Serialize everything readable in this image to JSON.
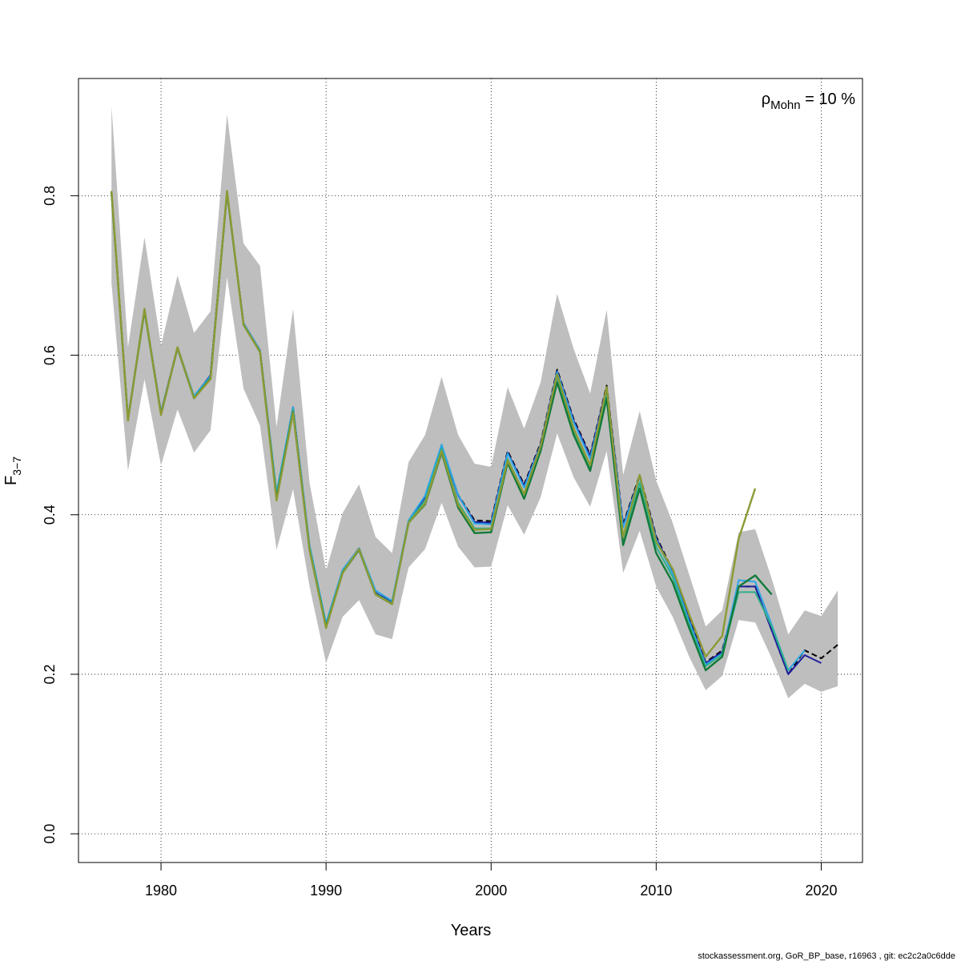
{
  "chart_data": {
    "type": "line",
    "title": "",
    "xlabel": "Years",
    "ylabel": "F",
    "ylabel_sub": "3−7",
    "xlim": [
      1975,
      2022.5
    ],
    "ylim": [
      -0.036,
      0.947
    ],
    "xticks": [
      1980,
      1990,
      2000,
      2010,
      2020
    ],
    "xtick_labels": [
      "1980",
      "1990",
      "2000",
      "2010",
      "2020"
    ],
    "yticks": [
      0.0,
      0.2,
      0.4,
      0.6,
      0.8
    ],
    "ytick_labels": [
      "0.0",
      "0.2",
      "0.4",
      "0.6",
      "0.8"
    ],
    "grid": true,
    "annotation": {
      "rho": "ρ",
      "sub": "Mohn",
      "text": " = 10 %",
      "placement": "top-right"
    },
    "band": {
      "color": "#bebebe",
      "x": [
        1977,
        1978,
        1979,
        1980,
        1981,
        1982,
        1983,
        1984,
        1985,
        1986,
        1987,
        1988,
        1989,
        1990,
        1991,
        1992,
        1993,
        1994,
        1995,
        1996,
        1997,
        1998,
        1999,
        2000,
        2001,
        2002,
        2003,
        2004,
        2005,
        2006,
        2007,
        2008,
        2009,
        2010,
        2011,
        2012,
        2013,
        2014,
        2015,
        2016,
        2017,
        2018,
        2019,
        2020,
        2021
      ],
      "upper": [
        0.912,
        0.61,
        0.748,
        0.612,
        0.7,
        0.628,
        0.655,
        0.902,
        0.74,
        0.712,
        0.51,
        0.658,
        0.44,
        0.33,
        0.402,
        0.438,
        0.372,
        0.352,
        0.466,
        0.5,
        0.573,
        0.5,
        0.464,
        0.46,
        0.56,
        0.508,
        0.566,
        0.677,
        0.608,
        0.552,
        0.657,
        0.45,
        0.53,
        0.443,
        0.39,
        0.325,
        0.26,
        0.28,
        0.378,
        0.382,
        0.32,
        0.25,
        0.28,
        0.273,
        0.305
      ],
      "lower": [
        0.69,
        0.455,
        0.57,
        0.462,
        0.532,
        0.478,
        0.506,
        0.698,
        0.558,
        0.512,
        0.356,
        0.432,
        0.31,
        0.214,
        0.272,
        0.293,
        0.25,
        0.244,
        0.334,
        0.357,
        0.415,
        0.36,
        0.334,
        0.335,
        0.412,
        0.375,
        0.422,
        0.502,
        0.447,
        0.41,
        0.48,
        0.327,
        0.38,
        0.31,
        0.272,
        0.222,
        0.18,
        0.198,
        0.268,
        0.265,
        0.22,
        0.17,
        0.188,
        0.178,
        0.185
      ]
    },
    "series": [
      {
        "color": "#000000",
        "dashed": true,
        "width": 2,
        "x": [
          1977,
          1978,
          1979,
          1980,
          1981,
          1982,
          1983,
          1984,
          1985,
          1986,
          1987,
          1988,
          1989,
          1990,
          1991,
          1992,
          1993,
          1994,
          1995,
          1996,
          1997,
          1998,
          1999,
          2000,
          2001,
          2002,
          2003,
          2004,
          2005,
          2006,
          2007,
          2008,
          2009,
          2010,
          2011,
          2012,
          2013,
          2014,
          2015,
          2016,
          2017,
          2018,
          2019,
          2020,
          2021
        ],
        "values": [
          0.805,
          0.52,
          0.658,
          0.528,
          0.61,
          0.548,
          0.575,
          0.805,
          0.64,
          0.606,
          0.425,
          0.535,
          0.36,
          0.262,
          0.33,
          0.358,
          0.302,
          0.29,
          0.392,
          0.423,
          0.487,
          0.425,
          0.393,
          0.392,
          0.48,
          0.438,
          0.49,
          0.582,
          0.52,
          0.475,
          0.562,
          0.388,
          0.45,
          0.373,
          0.33,
          0.27,
          0.215,
          0.23,
          0.31,
          0.31,
          0.255,
          0.2,
          0.23,
          0.22,
          0.237
        ]
      },
      {
        "color": "#1f1f9e",
        "dashed": false,
        "width": 2,
        "x": [
          1977,
          1978,
          1979,
          1980,
          1981,
          1982,
          1983,
          1984,
          1985,
          1986,
          1987,
          1988,
          1989,
          1990,
          1991,
          1992,
          1993,
          1994,
          1995,
          1996,
          1997,
          1998,
          1999,
          2000,
          2001,
          2002,
          2003,
          2004,
          2005,
          2006,
          2007,
          2008,
          2009,
          2010,
          2011,
          2012,
          2013,
          2014,
          2015,
          2016,
          2017,
          2018,
          2019,
          2020
        ],
        "values": [
          0.805,
          0.52,
          0.658,
          0.528,
          0.61,
          0.548,
          0.575,
          0.805,
          0.64,
          0.606,
          0.425,
          0.534,
          0.36,
          0.262,
          0.33,
          0.358,
          0.302,
          0.29,
          0.392,
          0.422,
          0.486,
          0.424,
          0.391,
          0.39,
          0.478,
          0.436,
          0.488,
          0.58,
          0.518,
          0.473,
          0.56,
          0.386,
          0.448,
          0.371,
          0.328,
          0.268,
          0.214,
          0.228,
          0.31,
          0.31,
          0.255,
          0.2,
          0.224,
          0.214
        ]
      },
      {
        "color": "#2aa6e6",
        "dashed": false,
        "width": 2,
        "x": [
          1977,
          1978,
          1979,
          1980,
          1981,
          1982,
          1983,
          1984,
          1985,
          1986,
          1987,
          1988,
          1989,
          1990,
          1991,
          1992,
          1993,
          1994,
          1995,
          1996,
          1997,
          1998,
          1999,
          2000,
          2001,
          2002,
          2003,
          2004,
          2005,
          2006,
          2007,
          2008,
          2009,
          2010,
          2011,
          2012,
          2013,
          2014,
          2015,
          2016,
          2017,
          2018,
          2019
        ],
        "values": [
          0.805,
          0.52,
          0.658,
          0.528,
          0.61,
          0.549,
          0.574,
          0.805,
          0.64,
          0.606,
          0.428,
          0.535,
          0.362,
          0.264,
          0.331,
          0.358,
          0.305,
          0.292,
          0.393,
          0.424,
          0.488,
          0.425,
          0.389,
          0.388,
          0.477,
          0.434,
          0.487,
          0.579,
          0.516,
          0.47,
          0.558,
          0.384,
          0.447,
          0.369,
          0.326,
          0.266,
          0.212,
          0.226,
          0.318,
          0.316,
          0.262,
          0.205,
          0.23
        ]
      },
      {
        "color": "#2fb08a",
        "dashed": false,
        "width": 2,
        "x": [
          1977,
          1978,
          1979,
          1980,
          1981,
          1982,
          1983,
          1984,
          1985,
          1986,
          1987,
          1988,
          1989,
          1990,
          1991,
          1992,
          1993,
          1994,
          1995,
          1996,
          1997,
          1998,
          1999,
          2000,
          2001,
          2002,
          2003,
          2004,
          2005,
          2006,
          2007,
          2008,
          2009,
          2010,
          2011,
          2012,
          2013,
          2014,
          2015,
          2016,
          2017,
          2018
        ],
        "values": [
          0.805,
          0.519,
          0.657,
          0.527,
          0.609,
          0.547,
          0.572,
          0.805,
          0.639,
          0.605,
          0.424,
          0.532,
          0.359,
          0.261,
          0.329,
          0.357,
          0.301,
          0.289,
          0.391,
          0.418,
          0.483,
          0.415,
          0.383,
          0.383,
          0.47,
          0.426,
          0.484,
          0.572,
          0.505,
          0.46,
          0.553,
          0.37,
          0.44,
          0.36,
          0.322,
          0.262,
          0.21,
          0.225,
          0.303,
          0.303,
          0.26,
          0.205
        ]
      },
      {
        "color": "#127a3a",
        "dashed": false,
        "width": 2.4,
        "x": [
          1977,
          1978,
          1979,
          1980,
          1981,
          1982,
          1983,
          1984,
          1985,
          1986,
          1987,
          1988,
          1989,
          1990,
          1991,
          1992,
          1993,
          1994,
          1995,
          1996,
          1997,
          1998,
          1999,
          2000,
          2001,
          2002,
          2003,
          2004,
          2005,
          2006,
          2007,
          2008,
          2009,
          2010,
          2011,
          2012,
          2013,
          2014,
          2015,
          2016,
          2017
        ],
        "values": [
          0.804,
          0.519,
          0.656,
          0.526,
          0.609,
          0.546,
          0.571,
          0.804,
          0.638,
          0.604,
          0.42,
          0.529,
          0.356,
          0.259,
          0.327,
          0.356,
          0.3,
          0.288,
          0.39,
          0.413,
          0.478,
          0.409,
          0.377,
          0.378,
          0.465,
          0.42,
          0.48,
          0.566,
          0.5,
          0.455,
          0.546,
          0.362,
          0.433,
          0.352,
          0.315,
          0.258,
          0.205,
          0.222,
          0.31,
          0.324,
          0.3
        ]
      },
      {
        "color": "#8c9a34",
        "dashed": false,
        "width": 2.4,
        "x": [
          1977,
          1978,
          1979,
          1980,
          1981,
          1982,
          1983,
          1984,
          1985,
          1986,
          1987,
          1988,
          1989,
          1990,
          1991,
          1992,
          1993,
          1994,
          1995,
          1996,
          1997,
          1998,
          1999,
          2000,
          2001,
          2002,
          2003,
          2004,
          2005,
          2006,
          2007,
          2008,
          2009,
          2010,
          2011,
          2012,
          2013,
          2014,
          2015,
          2016
        ],
        "values": [
          0.806,
          0.518,
          0.658,
          0.525,
          0.61,
          0.546,
          0.57,
          0.806,
          0.638,
          0.604,
          0.418,
          0.528,
          0.356,
          0.258,
          0.327,
          0.357,
          0.3,
          0.288,
          0.39,
          0.414,
          0.48,
          0.412,
          0.381,
          0.382,
          0.468,
          0.426,
          0.486,
          0.576,
          0.508,
          0.462,
          0.56,
          0.372,
          0.45,
          0.366,
          0.332,
          0.275,
          0.222,
          0.248,
          0.37,
          0.433
        ]
      }
    ],
    "footer": "stockassessment.org, GoR_BP_base, r16963 , git: ec2c2a0c6dde"
  }
}
